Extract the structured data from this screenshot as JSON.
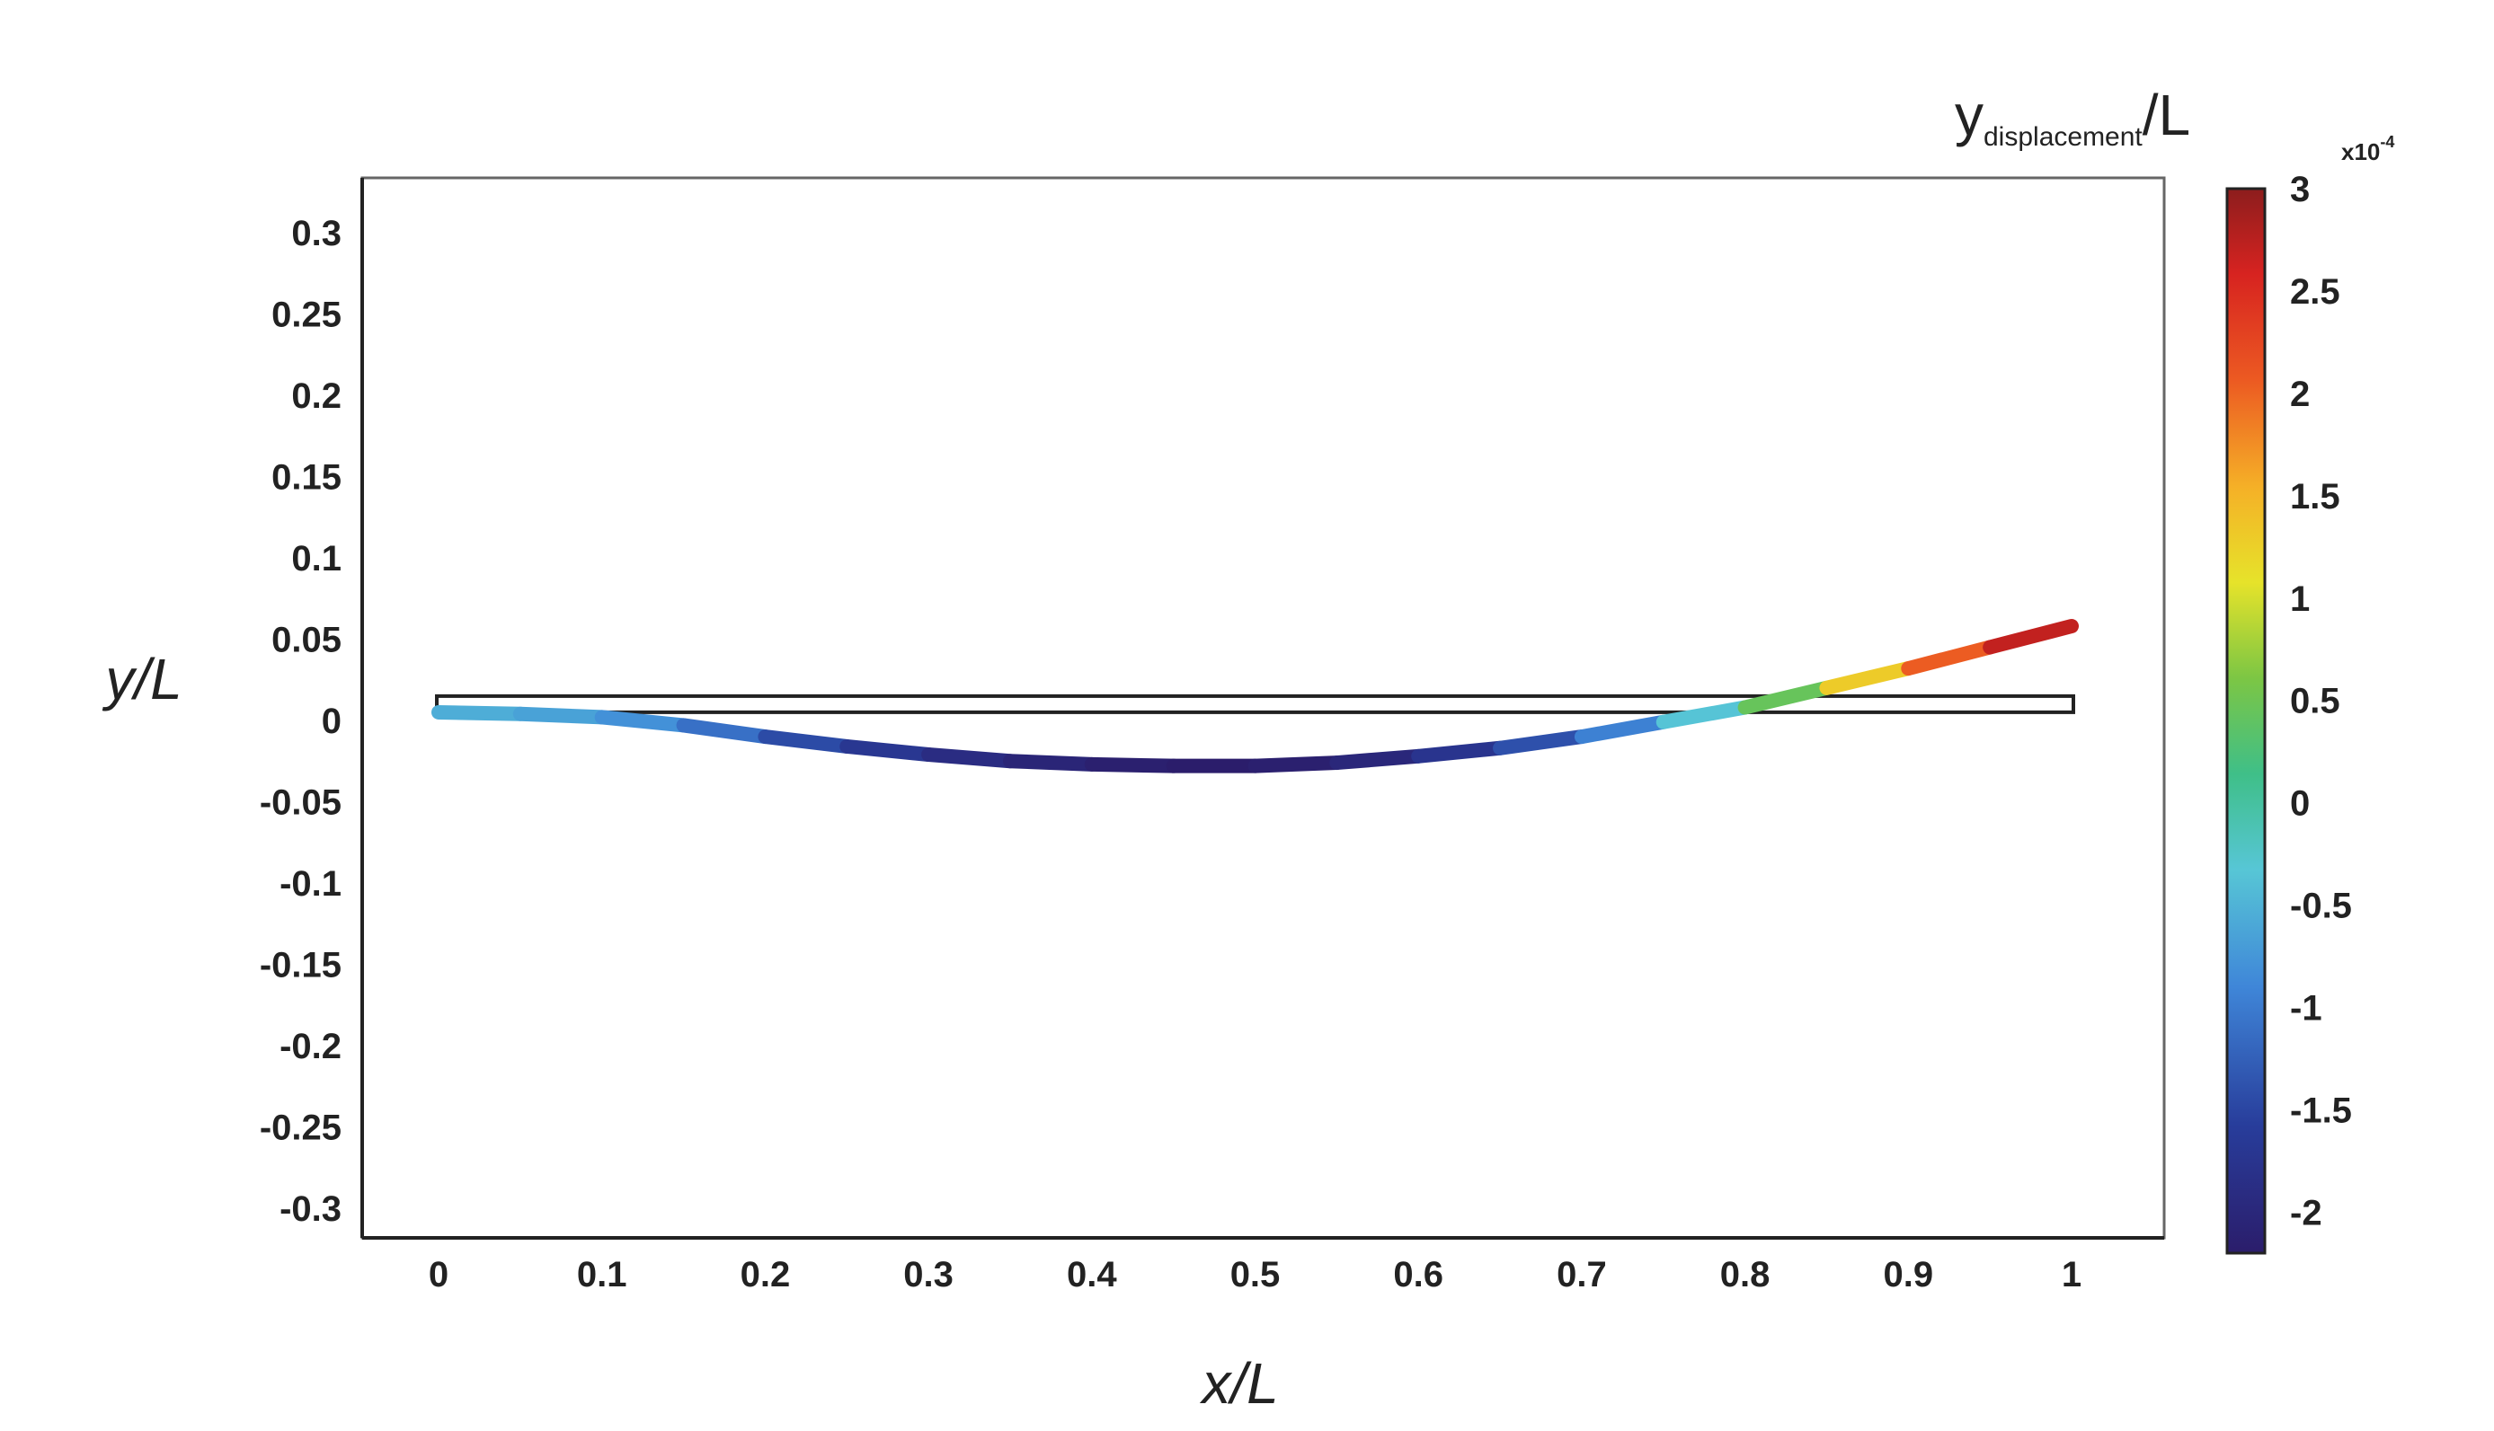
{
  "chart_data": {
    "type": "line",
    "xlabel": "x/L",
    "ylabel": "y/L",
    "xlim": [
      0,
      1
    ],
    "ylim": [
      -0.32,
      0.33
    ],
    "x_ticks": [
      "0",
      "0.1",
      "0.2",
      "0.3",
      "0.4",
      "0.5",
      "0.6",
      "0.7",
      "0.8",
      "0.9",
      "1"
    ],
    "y_ticks": [
      "0.3",
      "0.25",
      "0.2",
      "0.15",
      "0.1",
      "0.05",
      "0",
      "-0.05",
      "-0.1",
      "-0.15",
      "-0.2",
      "-0.25",
      "-0.3"
    ],
    "undeformed_beam": {
      "x": [
        0,
        1
      ],
      "y": [
        0.01,
        0.01
      ]
    },
    "series": [
      {
        "x": [
          0,
          0.05,
          0.1,
          0.15,
          0.2,
          0.25,
          0.3,
          0.35,
          0.4,
          0.45,
          0.5,
          0.55,
          0.6,
          0.65,
          0.7,
          0.75,
          0.8,
          0.85,
          0.9,
          0.95,
          1
        ],
        "y": [
          0.005,
          0.004,
          0.002,
          -0.003,
          -0.01,
          -0.016,
          -0.021,
          -0.025,
          -0.027,
          -0.028,
          -0.028,
          -0.026,
          -0.022,
          -0.017,
          -0.01,
          -0.001,
          0.008,
          0.02,
          0.032,
          0.045,
          0.058
        ],
        "color_values": [
          -0.5,
          -0.6,
          -0.7,
          -0.9,
          -1.3,
          -1.6,
          -1.8,
          -2.0,
          -2.1,
          -2.2,
          -2.2,
          -2.1,
          -1.9,
          -1.6,
          -1.2,
          -0.7,
          0.0,
          0.9,
          1.7,
          2.4,
          3.0
        ]
      }
    ],
    "colorbar": {
      "title_main": "y",
      "title_sub": "displacement",
      "title_end": "/L",
      "exponent": "x10",
      "exponent_power": "-4",
      "range": [
        -2.2,
        3.0
      ],
      "ticks": [
        "3",
        "2.5",
        "2",
        "1.5",
        "1",
        "0.5",
        "0",
        "-0.5",
        "-1",
        "-1.5",
        "-2"
      ],
      "colormap": "jet"
    },
    "grid": false,
    "legend": "none"
  }
}
